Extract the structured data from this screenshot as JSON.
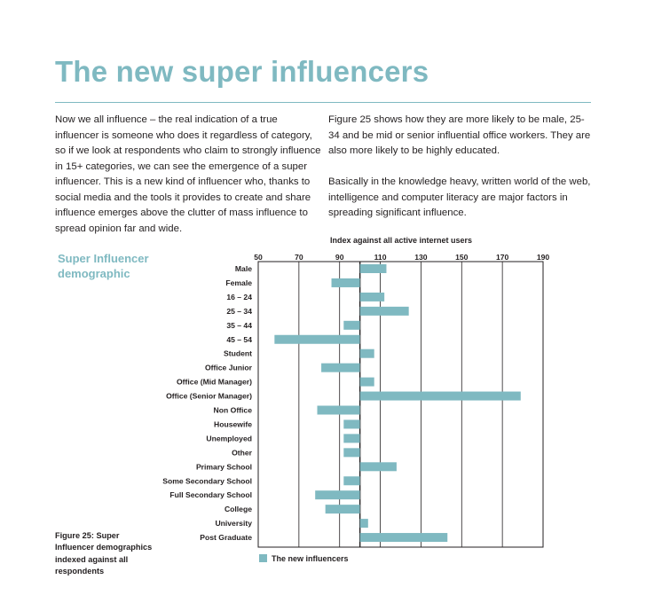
{
  "page": {
    "title": "The new super influencers",
    "intro_left": "Now we all influence – the real indication of a true influencer is someone who does it regardless of category, so if we look at respondents who claim to strongly influence in 15+ categories, we can see the emergence of a super influencer. This is a new kind of influencer who, thanks to social media and the tools it provides to create and share influence emerges above the clutter of mass influence to spread opinion far and wide.",
    "intro_right_1": "Figure 25 shows how they are more likely to be male, 25-34 and be mid or senior influential office workers. They are also more likely to be highly educated.",
    "intro_right_2": "Basically in the knowledge heavy, written world of the web, intelligence and computer literacy are major factors in spreading significant influence.",
    "chart_heading": "Super Influencer demographic",
    "figure_caption": "Figure 25: Super Influencer demographics indexed against all respondents"
  },
  "colors": {
    "accent": "#7fb9c1",
    "bar": "#7fb9c1",
    "text": "#231f20",
    "grid": "#231f20"
  },
  "chart_data": {
    "type": "bar",
    "orientation": "horizontal",
    "title": "Index against all active internet users",
    "baseline": 100,
    "xlim": [
      50,
      190
    ],
    "xticks": [
      50,
      70,
      90,
      110,
      130,
      150,
      170,
      190
    ],
    "categories": [
      "Male",
      "Female",
      "16 – 24",
      "25 – 34",
      "35 – 44",
      "45 – 54",
      "Student",
      "Office Junior",
      "Office (Mid Manager)",
      "Office (Senior Manager)",
      "Non Office",
      "Housewife",
      "Unemployed",
      "Other",
      "Primary School",
      "Some Secondary School",
      "Full Secondary School",
      "College",
      "University",
      "Post Graduate"
    ],
    "series": [
      {
        "name": "The new influencers",
        "values": [
          113,
          86,
          112,
          124,
          92,
          58,
          107,
          81,
          107,
          179,
          79,
          92,
          92,
          92,
          118,
          92,
          78,
          83,
          104,
          143
        ]
      }
    ],
    "legend": "bottom-center"
  }
}
